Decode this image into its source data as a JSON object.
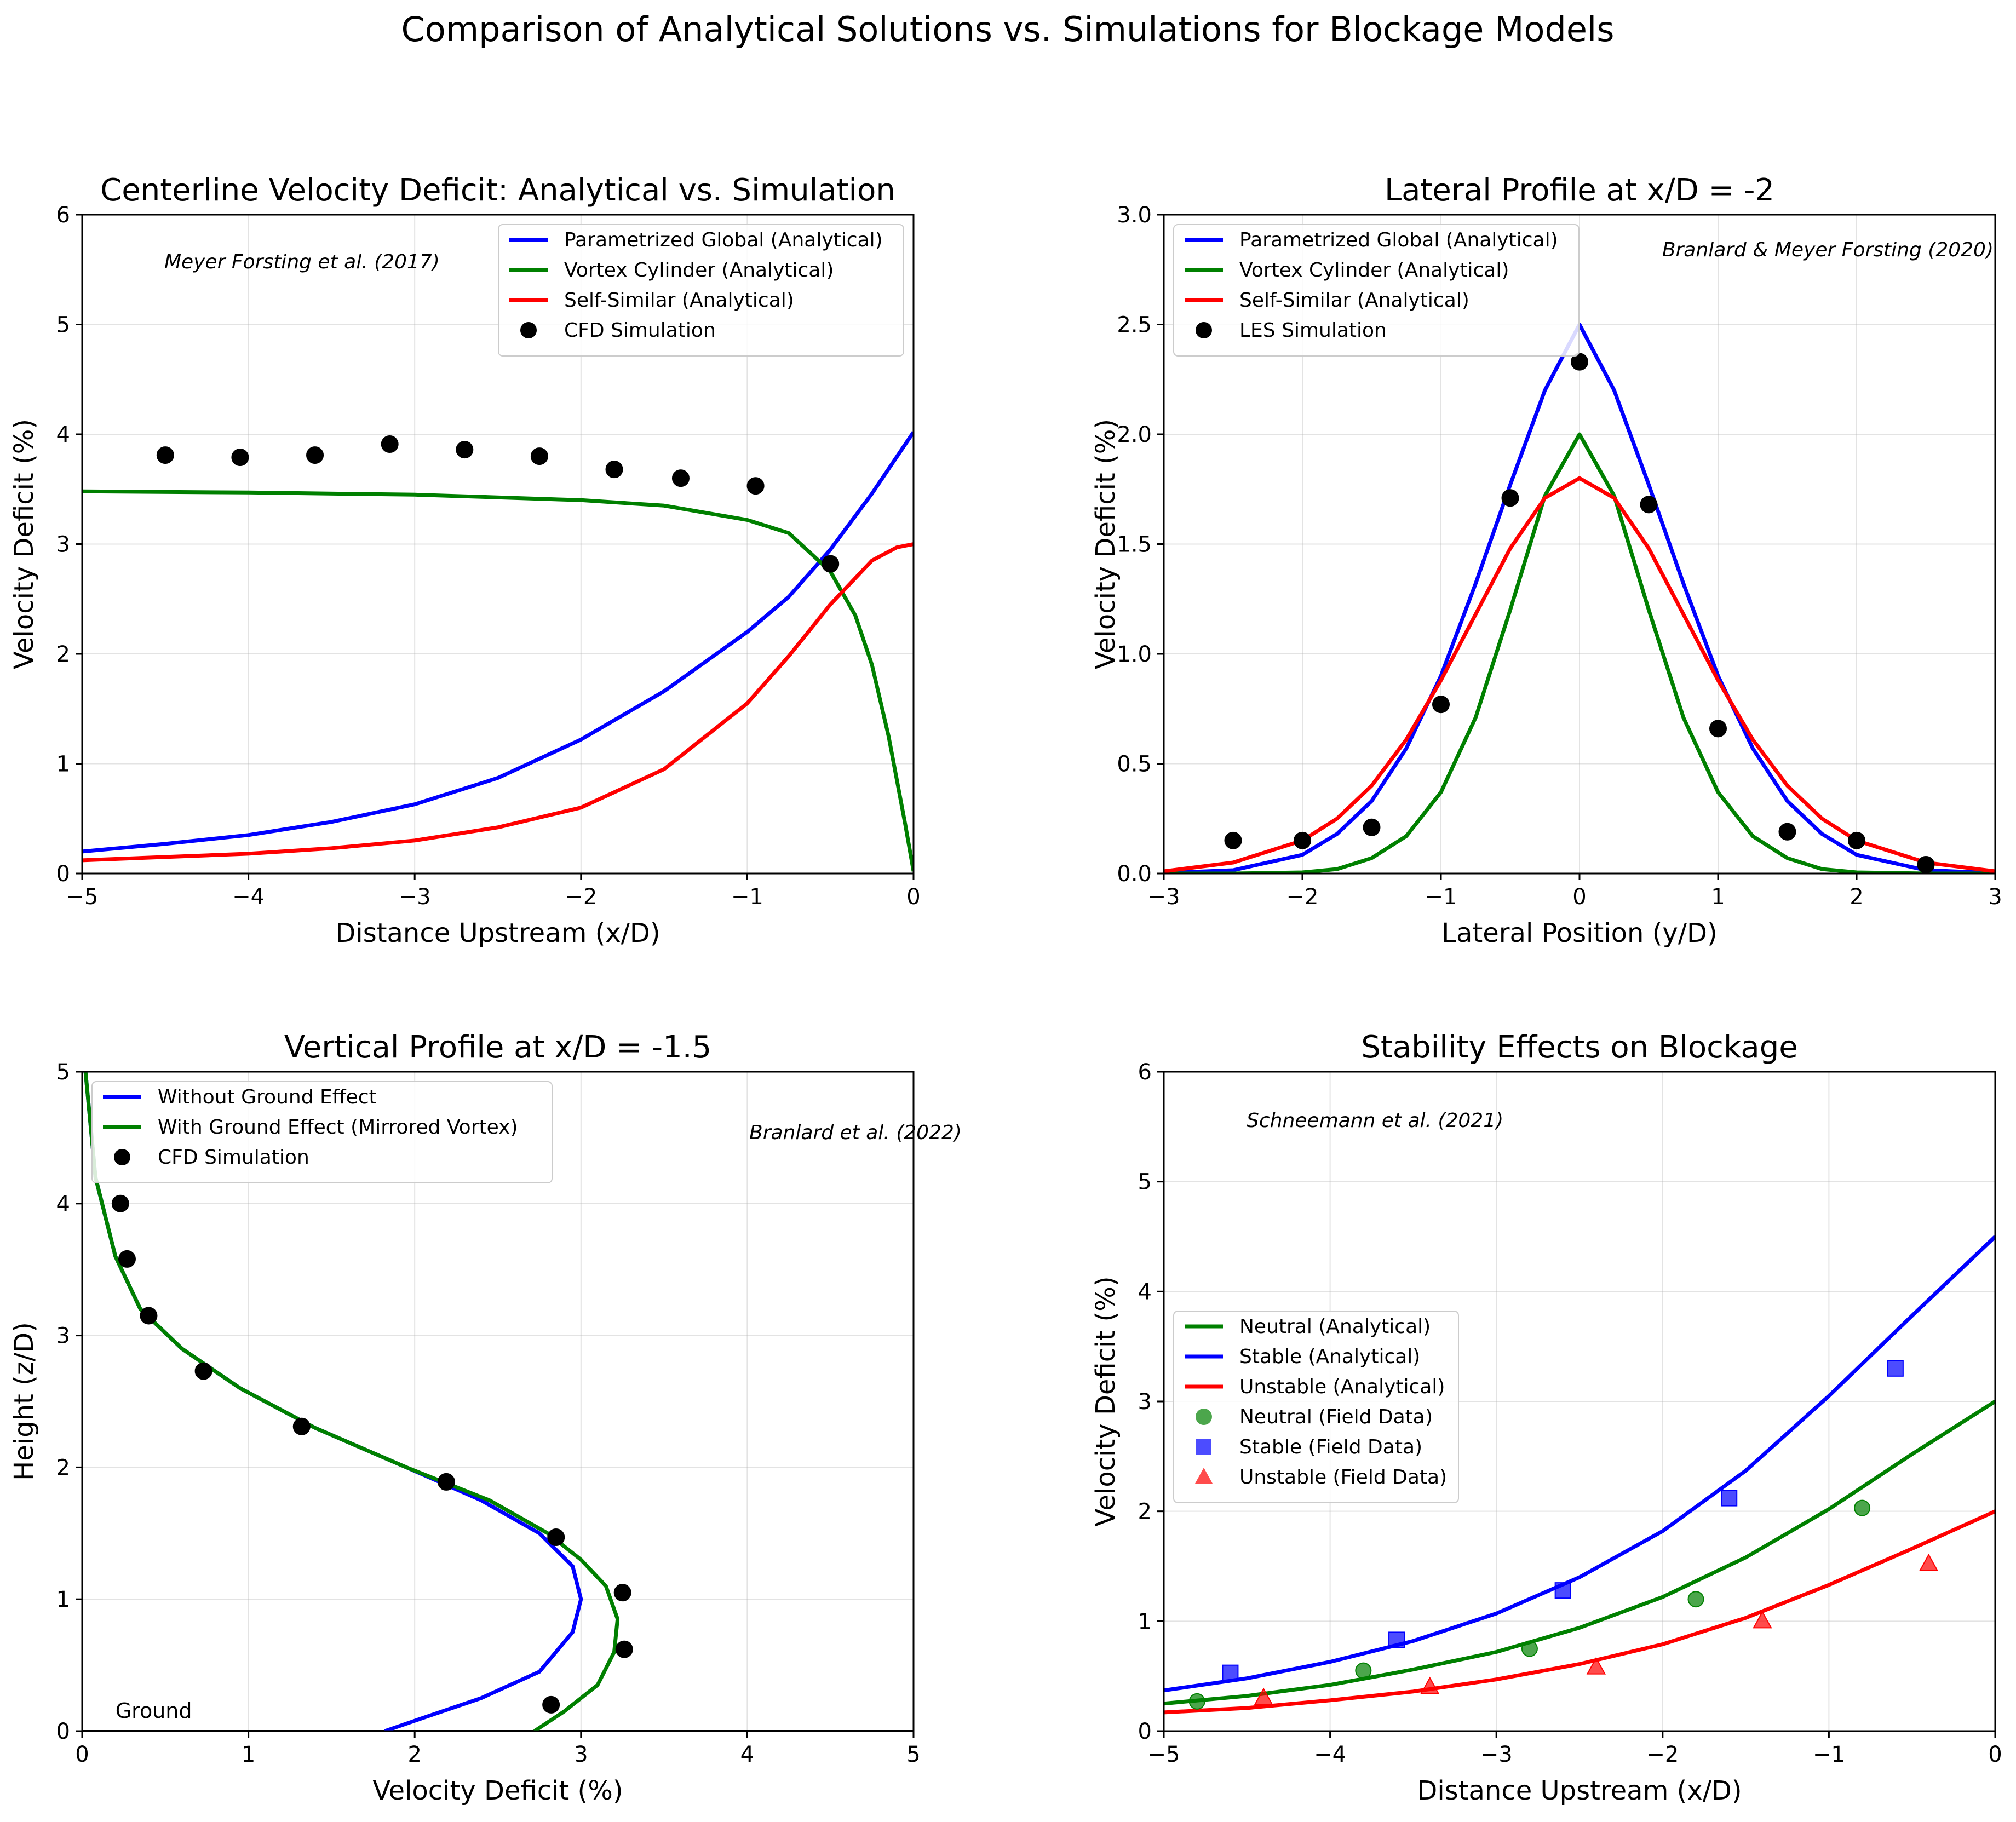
{
  "suptitle": "Comparison of Analytical Solutions vs. Simulations for Blockage Models",
  "chart_data": [
    {
      "type": "line",
      "title": "Centerline Velocity Deficit: Analytical vs. Simulation",
      "xlabel": "Distance Upstream (x/D)",
      "ylabel": "Velocity Deficit (%)",
      "xlim": [
        -5,
        0
      ],
      "ylim": [
        0,
        6
      ],
      "xticks": [
        -5,
        -4,
        -3,
        -2,
        -1,
        0
      ],
      "xtick_labels": [
        "−5",
        "−4",
        "−3",
        "−2",
        "−1",
        "0"
      ],
      "yticks": [
        0,
        1,
        2,
        3,
        4,
        5,
        6
      ],
      "ytick_labels": [
        "0",
        "1",
        "2",
        "3",
        "4",
        "5",
        "6"
      ],
      "grid": true,
      "legend_position": "upper right",
      "annotation": "Meyer Forsting et al. (2017)",
      "series": [
        {
          "name": "Parametrized Global (Analytical)",
          "kind": "line",
          "color": "#0000ff",
          "x": [
            -5,
            -4.5,
            -4,
            -3.5,
            -3,
            -2.5,
            -2,
            -1.5,
            -1,
            -0.75,
            -0.5,
            -0.25,
            0
          ],
          "y": [
            0.2,
            0.27,
            0.35,
            0.47,
            0.63,
            0.87,
            1.22,
            1.66,
            2.2,
            2.52,
            2.95,
            3.46,
            4.02
          ]
        },
        {
          "name": "Vortex Cylinder (Analytical)",
          "kind": "line",
          "color": "#008000",
          "x": [
            -5,
            -4,
            -3,
            -2,
            -1.5,
            -1,
            -0.75,
            -0.5,
            -0.35,
            -0.25,
            -0.15,
            -0.05,
            0
          ],
          "y": [
            3.48,
            3.47,
            3.45,
            3.4,
            3.35,
            3.22,
            3.1,
            2.75,
            2.35,
            1.9,
            1.25,
            0.45,
            0.02
          ]
        },
        {
          "name": "Self-Similar (Analytical)",
          "kind": "line",
          "color": "#ff0000",
          "x": [
            -5,
            -4.5,
            -4,
            -3.5,
            -3,
            -2.5,
            -2,
            -1.5,
            -1,
            -0.75,
            -0.5,
            -0.25,
            -0.1,
            0
          ],
          "y": [
            0.12,
            0.15,
            0.18,
            0.23,
            0.3,
            0.42,
            0.6,
            0.95,
            1.55,
            1.98,
            2.45,
            2.85,
            2.97,
            3.0
          ]
        },
        {
          "name": "CFD Simulation",
          "kind": "scatter",
          "color": "#000000",
          "marker": "circle",
          "x": [
            -4.5,
            -4.05,
            -3.6,
            -3.15,
            -2.7,
            -2.25,
            -1.8,
            -1.4,
            -0.95,
            -0.5
          ],
          "y": [
            3.81,
            3.79,
            3.81,
            3.91,
            3.86,
            3.8,
            3.68,
            3.6,
            3.53,
            2.82
          ]
        }
      ]
    },
    {
      "type": "line",
      "title": "Lateral Profile at x/D = -2",
      "xlabel": "Lateral Position (y/D)",
      "ylabel": "Velocity Deficit (%)",
      "xlim": [
        -3,
        3
      ],
      "ylim": [
        0,
        3
      ],
      "xticks": [
        -3,
        -2,
        -1,
        0,
        1,
        2,
        3
      ],
      "xtick_labels": [
        "−3",
        "−2",
        "−1",
        "0",
        "1",
        "2",
        "3"
      ],
      "yticks": [
        0,
        0.5,
        1,
        1.5,
        2,
        2.5,
        3
      ],
      "ytick_labels": [
        "0.0",
        "0.5",
        "1.0",
        "1.5",
        "2.0",
        "2.5",
        "3.0"
      ],
      "grid": true,
      "legend_position": "upper left",
      "annotation": "Branlard & Meyer Forsting (2020)",
      "series": [
        {
          "name": "Parametrized Global (Analytical)",
          "kind": "line",
          "color": "#0000ff",
          "x": [
            -3,
            -2.5,
            -2,
            -1.75,
            -1.5,
            -1.25,
            -1,
            -0.75,
            -0.5,
            -0.25,
            0,
            0.25,
            0.5,
            0.75,
            1,
            1.25,
            1.5,
            1.75,
            2,
            2.5,
            3
          ],
          "y": [
            0.002,
            0.015,
            0.085,
            0.18,
            0.33,
            0.57,
            0.9,
            1.32,
            1.77,
            2.2,
            2.5,
            2.2,
            1.77,
            1.32,
            0.9,
            0.57,
            0.33,
            0.18,
            0.085,
            0.015,
            0.002
          ]
        },
        {
          "name": "Vortex Cylinder (Analytical)",
          "kind": "line",
          "color": "#008000",
          "x": [
            -3,
            -2.5,
            -2,
            -1.75,
            -1.5,
            -1.25,
            -1,
            -0.75,
            -0.5,
            -0.25,
            0,
            0.25,
            0.5,
            0.75,
            1,
            1.25,
            1.5,
            1.75,
            2,
            2.5,
            3
          ],
          "y": [
            0.0,
            0.0,
            0.005,
            0.02,
            0.07,
            0.17,
            0.37,
            0.71,
            1.2,
            1.72,
            2.0,
            1.72,
            1.2,
            0.71,
            0.37,
            0.17,
            0.07,
            0.02,
            0.005,
            0.0,
            0.0
          ]
        },
        {
          "name": "Self-Similar (Analytical)",
          "kind": "line",
          "color": "#ff0000",
          "x": [
            -3,
            -2.5,
            -2,
            -1.75,
            -1.5,
            -1.25,
            -1,
            -0.75,
            -0.5,
            -0.25,
            0,
            0.25,
            0.5,
            0.75,
            1,
            1.25,
            1.5,
            1.75,
            2,
            2.5,
            3
          ],
          "y": [
            0.01,
            0.05,
            0.15,
            0.25,
            0.4,
            0.61,
            0.88,
            1.18,
            1.48,
            1.71,
            1.8,
            1.71,
            1.48,
            1.18,
            0.88,
            0.61,
            0.4,
            0.25,
            0.15,
            0.05,
            0.01
          ]
        },
        {
          "name": "LES Simulation",
          "kind": "scatter",
          "color": "#000000",
          "marker": "circle",
          "x": [
            -2.5,
            -2,
            -1.5,
            -1,
            -0.5,
            0,
            0.5,
            1,
            1.5,
            2,
            2.5
          ],
          "y": [
            0.15,
            0.15,
            0.21,
            0.77,
            1.71,
            2.33,
            1.68,
            0.66,
            0.19,
            0.15,
            0.04
          ]
        }
      ]
    },
    {
      "type": "line",
      "title": "Vertical Profile at x/D = -1.5",
      "xlabel": "Velocity Deficit (%)",
      "ylabel": "Height (z/D)",
      "xlim": [
        0,
        5
      ],
      "ylim": [
        0,
        5
      ],
      "xticks": [
        0,
        1,
        2,
        3,
        4,
        5
      ],
      "xtick_labels": [
        "0",
        "1",
        "2",
        "3",
        "4",
        "5"
      ],
      "yticks": [
        0,
        1,
        2,
        3,
        4,
        5
      ],
      "ytick_labels": [
        "0",
        "1",
        "2",
        "3",
        "4",
        "5"
      ],
      "grid": true,
      "legend_position": "upper left",
      "annotation": "Branlard et al. (2022)",
      "ground_label": "Ground",
      "series": [
        {
          "name": "Without Ground Effect",
          "kind": "line",
          "color": "#0000ff",
          "x": [
            1.82,
            2.05,
            2.4,
            2.75,
            2.95,
            3.0,
            2.95,
            2.75,
            2.4,
            1.95,
            1.4,
            0.95,
            0.6,
            0.35,
            0.2,
            0.08,
            0.02
          ],
          "y": [
            0,
            0.1,
            0.25,
            0.45,
            0.75,
            1.0,
            1.25,
            1.5,
            1.75,
            2.0,
            2.3,
            2.6,
            2.9,
            3.2,
            3.6,
            4.2,
            5.0
          ]
        },
        {
          "name": "With Ground Effect (Mirrored Vortex)",
          "kind": "line",
          "color": "#008000",
          "x": [
            2.72,
            2.9,
            3.1,
            3.2,
            3.22,
            3.15,
            3.0,
            2.8,
            2.45,
            1.95,
            1.4,
            0.95,
            0.6,
            0.35,
            0.2,
            0.08,
            0.02
          ],
          "y": [
            0,
            0.15,
            0.35,
            0.6,
            0.85,
            1.1,
            1.3,
            1.5,
            1.75,
            2.0,
            2.3,
            2.6,
            2.9,
            3.2,
            3.6,
            4.2,
            5.0
          ]
        },
        {
          "name": "CFD Simulation",
          "kind": "scatter",
          "color": "#000000",
          "marker": "circle",
          "x": [
            2.82,
            3.26,
            3.25,
            2.85,
            2.19,
            1.32,
            0.73,
            0.4,
            0.27,
            0.23
          ],
          "y": [
            0.2,
            0.62,
            1.05,
            1.47,
            1.89,
            2.31,
            2.73,
            3.15,
            3.58,
            4.0
          ]
        }
      ]
    },
    {
      "type": "line",
      "title": "Stability Effects on Blockage",
      "xlabel": "Distance Upstream (x/D)",
      "ylabel": "Velocity Deficit (%)",
      "xlim": [
        -5,
        0
      ],
      "ylim": [
        0,
        6
      ],
      "xticks": [
        -5,
        -4,
        -3,
        -2,
        -1,
        0
      ],
      "xtick_labels": [
        "−5",
        "−4",
        "−3",
        "−2",
        "−1",
        "0"
      ],
      "yticks": [
        0,
        1,
        2,
        3,
        4,
        5,
        6
      ],
      "ytick_labels": [
        "0",
        "1",
        "2",
        "3",
        "4",
        "5",
        "6"
      ],
      "grid": true,
      "legend_position": "center left",
      "annotation": "Schneemann et al. (2021)",
      "series": [
        {
          "name": "Neutral (Analytical)",
          "kind": "line",
          "color": "#008000",
          "x": [
            -5,
            -4.5,
            -4,
            -3.5,
            -3,
            -2.5,
            -2,
            -1.5,
            -1,
            -0.5,
            0
          ],
          "y": [
            0.25,
            0.32,
            0.42,
            0.56,
            0.72,
            0.94,
            1.22,
            1.58,
            2.02,
            2.52,
            3.0
          ]
        },
        {
          "name": "Stable (Analytical)",
          "kind": "line",
          "color": "#0000ff",
          "x": [
            -5,
            -4.5,
            -4,
            -3.5,
            -3,
            -2.5,
            -2,
            -1.5,
            -1,
            -0.5,
            0
          ],
          "y": [
            0.37,
            0.48,
            0.63,
            0.82,
            1.07,
            1.4,
            1.82,
            2.37,
            3.05,
            3.78,
            4.5
          ]
        },
        {
          "name": "Unstable (Analytical)",
          "kind": "line",
          "color": "#ff0000",
          "x": [
            -5,
            -4.5,
            -4,
            -3.5,
            -3,
            -2.5,
            -2,
            -1.5,
            -1,
            -0.5,
            0
          ],
          "y": [
            0.17,
            0.21,
            0.28,
            0.36,
            0.47,
            0.61,
            0.79,
            1.03,
            1.33,
            1.66,
            2.0
          ]
        },
        {
          "name": "Neutral (Field Data)",
          "kind": "scatter",
          "color": "#008000",
          "marker": "circle",
          "x": [
            -4.8,
            -3.8,
            -2.8,
            -1.8,
            -0.8
          ],
          "y": [
            0.27,
            0.55,
            0.75,
            1.2,
            2.03
          ]
        },
        {
          "name": "Stable (Field Data)",
          "kind": "scatter",
          "color": "#0000ff",
          "marker": "square",
          "x": [
            -4.6,
            -3.6,
            -2.6,
            -1.6,
            -0.6
          ],
          "y": [
            0.53,
            0.83,
            1.28,
            2.12,
            3.3
          ]
        },
        {
          "name": "Unstable (Field Data)",
          "kind": "scatter",
          "color": "#ff0000",
          "marker": "triangle",
          "x": [
            -4.4,
            -3.4,
            -2.4,
            -1.4,
            -0.4
          ],
          "y": [
            0.3,
            0.4,
            0.58,
            1.0,
            1.52
          ]
        }
      ]
    }
  ]
}
